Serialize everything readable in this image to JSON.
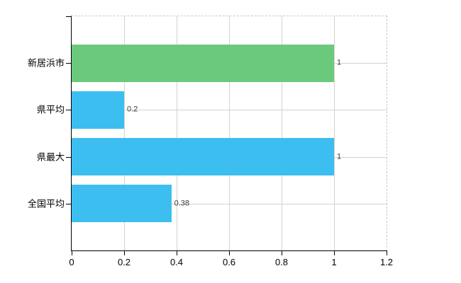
{
  "chart_data": {
    "type": "bar",
    "orientation": "horizontal",
    "title": "",
    "xlabel": "",
    "ylabel": "",
    "categories": [
      "新居浜市",
      "県平均",
      "県最大",
      "全国平均"
    ],
    "values": [
      1,
      0.2,
      1,
      0.38
    ],
    "value_labels": [
      "1",
      "0.2",
      "1",
      "0.38"
    ],
    "bar_colors": [
      "#6bc97d",
      "#3dbef0",
      "#3dbef0",
      "#3dbef0"
    ],
    "xlim": [
      0,
      1.2
    ],
    "x_ticks": [
      0,
      0.2,
      0.4,
      0.6,
      0.8,
      1,
      1.2
    ],
    "x_tick_labels": [
      "0",
      "0.2",
      "0.4",
      "0.6",
      "0.8",
      "1",
      "1.2"
    ],
    "grid": true,
    "legend": false,
    "colors": {
      "grid": "#d6d2cd",
      "axis": "#000000",
      "border_dashed": "#c9c9c9",
      "value_label": "#3a3a3a",
      "tick_label": "#000000",
      "background": "#ffffff"
    }
  }
}
